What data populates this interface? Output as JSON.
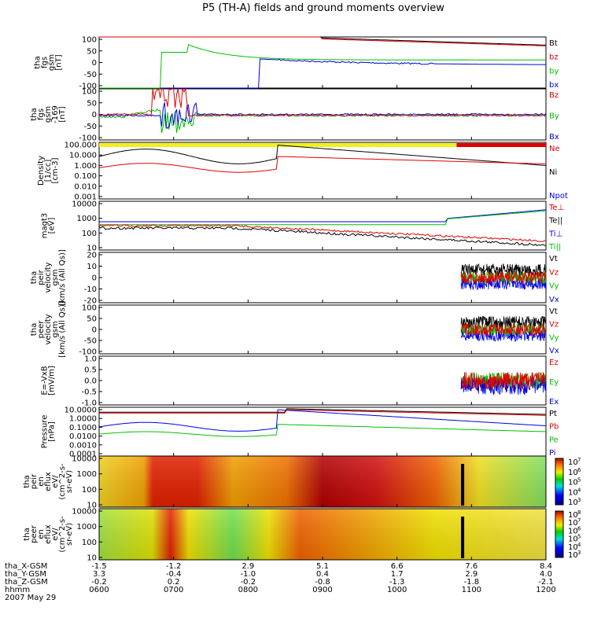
{
  "chart_data": {
    "type": "line",
    "title": "P5 (TH-A) fields and ground moments overview",
    "x_ticks": [
      "0600",
      "0700",
      "0800",
      "0900",
      "1000",
      "1100",
      "1200"
    ],
    "x_range": [
      "0600",
      "1200"
    ],
    "panels": [
      {
        "id": "fgs",
        "ylabel": [
          "tha",
          "fgs",
          "gsm",
          "[nT]"
        ],
        "ylim": [
          -100,
          100
        ],
        "yticks": [
          "100",
          "50",
          "0",
          "-50",
          "-100"
        ],
        "legend": [
          {
            "text": "Bt",
            "color": "#000000"
          },
          {
            "text": "bz",
            "color": "#e00000"
          },
          {
            "text": "by",
            "color": "#00c000"
          },
          {
            "text": "bx",
            "color": "#0000e0"
          }
        ]
      },
      {
        "id": "fgs_rot",
        "ylabel": [
          "tha",
          "fgs",
          "gsm",
          "-169",
          "[nT]"
        ],
        "ylim": [
          -100,
          100
        ],
        "yticks": [
          "100",
          "50",
          "0",
          "-50",
          "-100"
        ],
        "legend": [
          {
            "text": "Bz",
            "color": "#e00000"
          },
          {
            "text": "By",
            "color": "#00c000"
          },
          {
            "text": "Bx",
            "color": "#0000e0"
          }
        ]
      },
      {
        "id": "density",
        "ylabel": [
          "Density",
          "[1/cc]",
          "[cm-3]"
        ],
        "yscale": "log",
        "yticks": [
          "100.000",
          "10.000",
          "1.000",
          "0.100",
          "0.010",
          "0.001"
        ],
        "legend": [
          {
            "text": "Ne",
            "color": "#e00000"
          },
          {
            "text": "Ni",
            "color": "#000000"
          },
          {
            "text": "Npot",
            "color": "#0000e0"
          }
        ]
      },
      {
        "id": "temp",
        "ylabel": [
          "magt3",
          "[eV]"
        ],
        "yscale": "log",
        "yticks": [
          "10000",
          "1000",
          "100",
          "10"
        ],
        "legend": [
          {
            "text": "Te⊥",
            "color": "#e00000"
          },
          {
            "text": "Te||",
            "color": "#000000"
          },
          {
            "text": "Ti⊥",
            "color": "#0000e0"
          },
          {
            "text": "Ti||",
            "color": "#00c000"
          }
        ]
      },
      {
        "id": "peir_vel",
        "ylabel": [
          "tha",
          "peir",
          "velocity",
          "gsm",
          "[km/s (All Qs)]"
        ],
        "ylim": [
          -20,
          20
        ],
        "yticks": [
          "20",
          "10",
          "0",
          "-10",
          "-20"
        ],
        "legend": [
          {
            "text": "Vt",
            "color": "#000000"
          },
          {
            "text": "Vz",
            "color": "#e00000"
          },
          {
            "text": "Vy",
            "color": "#00c000"
          },
          {
            "text": "Vx",
            "color": "#0000e0"
          }
        ]
      },
      {
        "id": "peer_vel",
        "ylabel": [
          "tha",
          "peer",
          "velocity",
          "gsm",
          "[km/s (All Qs)]"
        ],
        "ylim": [
          -100,
          100
        ],
        "yticks": [
          "100",
          "50",
          "0",
          "-50",
          "-100"
        ],
        "legend": [
          {
            "text": "Vt",
            "color": "#000000"
          },
          {
            "text": "Vz",
            "color": "#e00000"
          },
          {
            "text": "Vy",
            "color": "#00c000"
          },
          {
            "text": "Vx",
            "color": "#0000e0"
          }
        ]
      },
      {
        "id": "efield",
        "ylabel": [
          "E=-VxB",
          "[mV/m]"
        ],
        "ylim": [
          -1.0,
          1.0
        ],
        "yticks": [
          "1.0",
          "0.5",
          "0.0",
          "-0.5",
          "-1.0"
        ],
        "legend": [
          {
            "text": "Ez",
            "color": "#e00000"
          },
          {
            "text": "Ey",
            "color": "#00c000"
          },
          {
            "text": "Ex",
            "color": "#0000e0"
          }
        ]
      },
      {
        "id": "pressure",
        "ylabel": [
          "Pressure",
          "[nPa]"
        ],
        "yscale": "log",
        "yticks": [
          "10.0000",
          "1.0000",
          "0.1000",
          "0.0100",
          "0.0010",
          "0.0001"
        ],
        "legend": [
          {
            "text": "Pt",
            "color": "#000000"
          },
          {
            "text": "Pb",
            "color": "#e00000"
          },
          {
            "text": "Pe",
            "color": "#00c000"
          },
          {
            "text": "Pi",
            "color": "#0000e0"
          }
        ]
      },
      {
        "id": "peir_spec",
        "type": "heatmap",
        "ylabel": [
          "tha",
          "peir",
          "en",
          "eflux",
          "eV/",
          "(cm^2-s-",
          "sr-eV)"
        ],
        "yscale": "log",
        "yticks": [
          "10000",
          "1000",
          "100",
          "10"
        ],
        "colorbar": {
          "ticks": [
            "10",
            "10",
            "10",
            "10",
            "10"
          ],
          "exponents": [
            "7",
            "6",
            "5",
            "4",
            "3"
          ]
        }
      },
      {
        "id": "peer_spec",
        "type": "heatmap",
        "ylabel": [
          "tha",
          "peer",
          "en",
          "eflux",
          "eV/",
          "(cm^2-s-",
          "sr-eV)"
        ],
        "yscale": "log",
        "yticks": [
          "10000",
          "1000",
          "100",
          "10"
        ],
        "colorbar": {
          "ticks": [
            "10",
            "10",
            "10",
            "10",
            "10",
            "10"
          ],
          "exponents": [
            "8",
            "7",
            "6",
            "5",
            "4",
            "3"
          ]
        }
      }
    ],
    "orbit_table": {
      "rows": [
        {
          "label": "tha_X-GSM",
          "values": [
            "-1.5",
            "-1.2",
            "2.9",
            "5.1",
            "6.6",
            "7.6",
            "8.4"
          ]
        },
        {
          "label": "tha_Y-GSM",
          "values": [
            "3.3",
            "-0.4",
            "-1.0",
            "0.4",
            "1.7",
            "2.9",
            "4.0"
          ]
        },
        {
          "label": "tha_Z-GSM",
          "values": [
            "-0.2",
            "0.2",
            "-0.2",
            "-0.8",
            "-1.3",
            "-1.8",
            "-2.1"
          ]
        },
        {
          "label": "hhmm",
          "values": [
            "0600",
            "0700",
            "0800",
            "0900",
            "1000",
            "1100",
            "1200"
          ]
        }
      ],
      "date": "2007 May 29"
    }
  }
}
